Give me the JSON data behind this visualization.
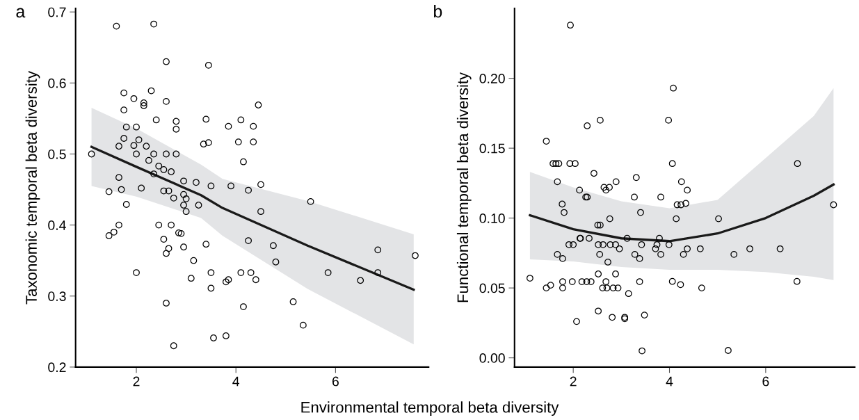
{
  "chart_data": [
    {
      "type": "scatter",
      "title": "a",
      "xlabel": "Environmental temporal beta diversity",
      "ylabel": "Taxonomic temporal beta diversity",
      "xlim": [
        0.78,
        7.87
      ],
      "ylim": [
        0.2,
        0.705
      ],
      "xticks": [
        2,
        4,
        6
      ],
      "yticks": [
        {
          "value": 0.2,
          "label": "0.2"
        },
        {
          "value": 0.3,
          "label": "0.3"
        },
        {
          "value": 0.4,
          "label": "0.4"
        },
        {
          "value": 0.5,
          "label": "0.5"
        },
        {
          "value": 0.6,
          "label": "0.6"
        },
        {
          "value": 0.7,
          "label": "0.7"
        }
      ],
      "marker": "circle",
      "grid": false,
      "legend": false,
      "series": [
        {
          "color": "#000000",
          "x": [
            1.1,
            1.45,
            1.45,
            1.55,
            1.6,
            1.65,
            1.65,
            1.7,
            1.65,
            1.75,
            1.75,
            1.75,
            1.8,
            1.8,
            1.95,
            1.95,
            2.0,
            2.0,
            2.0,
            2.05,
            2.1,
            2.15,
            2.15,
            2.2,
            2.25,
            2.3,
            2.35,
            2.35,
            2.35,
            2.4,
            2.45,
            2.45,
            2.55,
            2.55,
            2.55,
            2.6,
            2.6,
            2.6,
            2.6,
            2.6,
            2.65,
            2.65,
            2.7,
            2.7,
            2.75,
            2.75,
            2.8,
            2.8,
            2.8,
            2.85,
            2.9,
            2.95,
            2.95,
            2.95,
            2.95,
            3.0,
            3.0,
            3.2,
            3.25,
            3.15,
            3.1,
            3.35,
            3.4,
            3.45,
            3.45,
            3.4,
            3.5,
            3.5,
            3.5,
            3.55,
            3.8,
            3.85,
            3.8,
            3.85,
            3.9,
            4.05,
            4.1,
            4.1,
            4.15,
            4.15,
            4.25,
            4.25,
            4.3,
            4.35,
            4.35,
            4.4,
            4.45,
            4.5,
            4.5,
            4.75,
            4.8,
            5.15,
            5.35,
            5.5,
            5.85,
            6.5,
            6.85,
            6.85,
            7.6
          ],
          "values": [
            0.5,
            0.447,
            0.385,
            0.39,
            0.68,
            0.4,
            0.467,
            0.45,
            0.511,
            0.522,
            0.586,
            0.562,
            0.538,
            0.429,
            0.578,
            0.512,
            0.5,
            0.538,
            0.333,
            0.52,
            0.452,
            0.572,
            0.568,
            0.511,
            0.491,
            0.589,
            0.683,
            0.5,
            0.472,
            0.548,
            0.483,
            0.4,
            0.478,
            0.448,
            0.38,
            0.63,
            0.574,
            0.5,
            0.36,
            0.29,
            0.448,
            0.367,
            0.475,
            0.4,
            0.438,
            0.23,
            0.546,
            0.535,
            0.5,
            0.389,
            0.388,
            0.462,
            0.443,
            0.428,
            0.369,
            0.419,
            0.437,
            0.46,
            0.428,
            0.35,
            0.325,
            0.514,
            0.549,
            0.516,
            0.625,
            0.373,
            0.455,
            0.333,
            0.311,
            0.241,
            0.32,
            0.323,
            0.244,
            0.539,
            0.455,
            0.517,
            0.548,
            0.333,
            0.489,
            0.285,
            0.449,
            0.378,
            0.333,
            0.539,
            0.517,
            0.323,
            0.569,
            0.457,
            0.419,
            0.371,
            0.348,
            0.292,
            0.259,
            0.433,
            0.333,
            0.322,
            0.365,
            0.333,
            0.357
          ]
        },
        {
          "type": "line",
          "color": "#1a1a1a",
          "line_style": "solid",
          "marker": "none",
          "x": [
            1.1,
            2.0,
            3.3,
            3.73,
            5.44,
            7.57
          ],
          "values": [
            0.51,
            0.482,
            0.442,
            0.424,
            0.371,
            0.309
          ],
          "lower": [
            0.455,
            0.44,
            0.41,
            0.385,
            0.31,
            0.232
          ],
          "upper": [
            0.565,
            0.536,
            0.485,
            0.465,
            0.434,
            0.387
          ]
        }
      ]
    },
    {
      "type": "scatter",
      "title": "b",
      "ylabel": "Functional temporal beta diversity",
      "xlim": [
        0.78,
        7.85
      ],
      "ylim": [
        -0.0066,
        0.25
      ],
      "xticks": [
        2,
        4,
        6
      ],
      "yticks": [
        {
          "value": 0,
          "label": "0.00"
        },
        {
          "value": 0.05,
          "label": "0.05"
        },
        {
          "value": 0.1,
          "label": "0.10"
        },
        {
          "value": 0.15,
          "label": "0.15"
        },
        {
          "value": 0.2,
          "label": "0.20"
        }
      ],
      "marker": "circle",
      "grid": false,
      "legend": false,
      "series": [
        {
          "color": "#000000",
          "x": [
            1.94,
            1.44,
            2.29,
            2.56,
            1.58,
            1.64,
            1.7,
            1.93,
            2.04,
            2.43,
            1.67,
            2.89,
            3.31,
            2.13,
            2.26,
            2.29,
            2.64,
            2.68,
            2.75,
            3.27,
            1.77,
            1.81,
            2.76,
            2.51,
            2.56,
            3.4,
            2.14,
            2.15,
            2.33,
            3.12,
            1.91,
            2.0,
            2.52,
            2.62,
            2.77,
            2.88,
            3.42,
            2.96,
            1.67,
            1.78,
            2.55,
            3.28,
            3.38,
            2.72,
            1.1,
            1.44,
            1.53,
            1.78,
            1.78,
            1.98,
            2.18,
            2.28,
            2.37,
            2.52,
            2.88,
            2.68,
            2.61,
            2.7,
            2.83,
            2.93,
            3.15,
            3.38,
            2.52,
            2.81,
            3.07,
            3.07,
            2.07,
            3.43,
            4.08,
            3.98,
            4.06,
            6.66,
            4.25,
            4.37,
            3.82,
            4.16,
            4.24,
            4.34,
            7.41,
            4.14,
            5.02,
            3.79,
            3.74,
            3.99,
            3.71,
            4.37,
            4.64,
            5.67,
            6.3,
            3.82,
            4.29,
            5.34,
            4.06,
            6.65,
            4.23,
            4.67,
            3.48,
            5.22
          ],
          "values": [
            0.238,
            0.155,
            0.166,
            0.17,
            0.139,
            0.139,
            0.139,
            0.139,
            0.139,
            0.132,
            0.126,
            0.126,
            0.129,
            0.12,
            0.115,
            0.115,
            0.122,
            0.12,
            0.122,
            0.115,
            0.11,
            0.104,
            0.0995,
            0.095,
            0.095,
            0.104,
            0.0855,
            0.0855,
            0.0855,
            0.0855,
            0.081,
            0.081,
            0.081,
            0.081,
            0.081,
            0.081,
            0.081,
            0.078,
            0.074,
            0.071,
            0.074,
            0.074,
            0.071,
            0.0685,
            0.057,
            0.05,
            0.052,
            0.0545,
            0.05,
            0.0545,
            0.0545,
            0.0545,
            0.0545,
            0.06,
            0.06,
            0.0545,
            0.05,
            0.05,
            0.05,
            0.05,
            0.046,
            0.0545,
            0.0335,
            0.029,
            0.029,
            0.028,
            0.026,
            0.005,
            0.193,
            0.17,
            0.139,
            0.139,
            0.126,
            0.12,
            0.115,
            0.1095,
            0.1095,
            0.1105,
            0.1095,
            0.0995,
            0.0995,
            0.0855,
            0.081,
            0.081,
            0.078,
            0.078,
            0.078,
            0.078,
            0.078,
            0.074,
            0.074,
            0.074,
            0.0547,
            0.0547,
            0.0524,
            0.05,
            0.0306,
            0.0053
          ]
        },
        {
          "type": "line",
          "color": "#1a1a1a",
          "line_style": "solid",
          "marker": "none",
          "x": [
            1.1,
            2,
            3,
            4,
            5,
            6,
            7,
            7.41
          ],
          "values": [
            0.102,
            0.092,
            0.0855,
            0.0835,
            0.089,
            0.1,
            0.116,
            0.124
          ],
          "lower": [
            0.0705,
            0.069,
            0.065,
            0.063,
            0.063,
            0.0614,
            0.058,
            0.0556
          ],
          "upper": [
            0.133,
            0.122,
            0.112,
            0.107,
            0.113,
            0.143,
            0.173,
            0.193
          ]
        }
      ]
    }
  ]
}
